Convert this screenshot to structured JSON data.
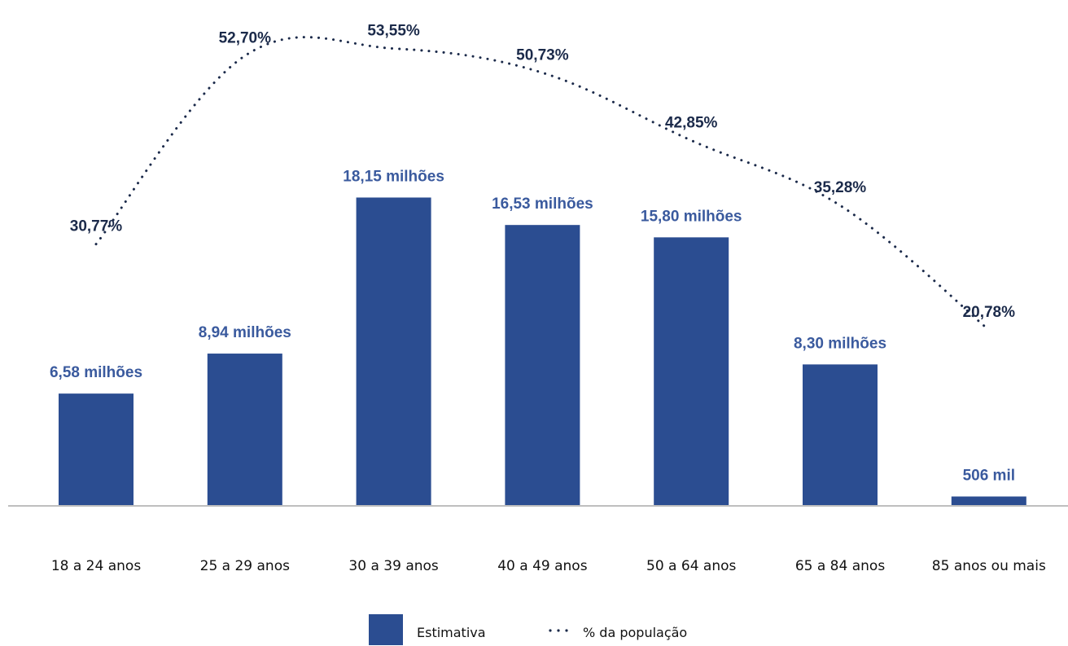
{
  "chart_data": {
    "type": "bar",
    "categories": [
      "18 a 24 anos",
      "25 a 29 anos",
      "30 a 39 anos",
      "40 a 49 anos",
      "50 a 64 anos",
      "65 a 84 anos",
      "85 anos ou mais"
    ],
    "series": [
      {
        "name": "Estimativa",
        "type": "bar",
        "unit": "milhões",
        "values": [
          6.58,
          8.94,
          18.15,
          16.53,
          15.8,
          8.3,
          0.506
        ],
        "labels": [
          "6,58 milhões",
          "8,94 milhões",
          "18,15 milhões",
          "16,53 milhões",
          "15,80 milhões",
          "8,30 milhões",
          "506 mil"
        ],
        "color": "#2b4d91"
      },
      {
        "name": "% da população",
        "type": "line",
        "style": "dotted",
        "values": [
          30.77,
          52.7,
          53.55,
          50.73,
          42.85,
          35.28,
          20.78
        ],
        "labels": [
          "30,77%",
          "52,70%",
          "53,55%",
          "50,73%",
          "42,85%",
          "35,28%",
          "20,78%"
        ],
        "color": "#1b2a4a"
      }
    ],
    "bar_label_color": "#3a5a9e",
    "line_label_color": "#1b2a4a",
    "baseline_color": "#bfbfbf",
    "legend": {
      "position": "bottom",
      "items": [
        {
          "label": "Estimativa",
          "marker": "square"
        },
        {
          "label": "% da população",
          "marker": "dotted-line"
        }
      ]
    },
    "grid": false,
    "title": "",
    "xlabel": "",
    "ylabel": ""
  }
}
